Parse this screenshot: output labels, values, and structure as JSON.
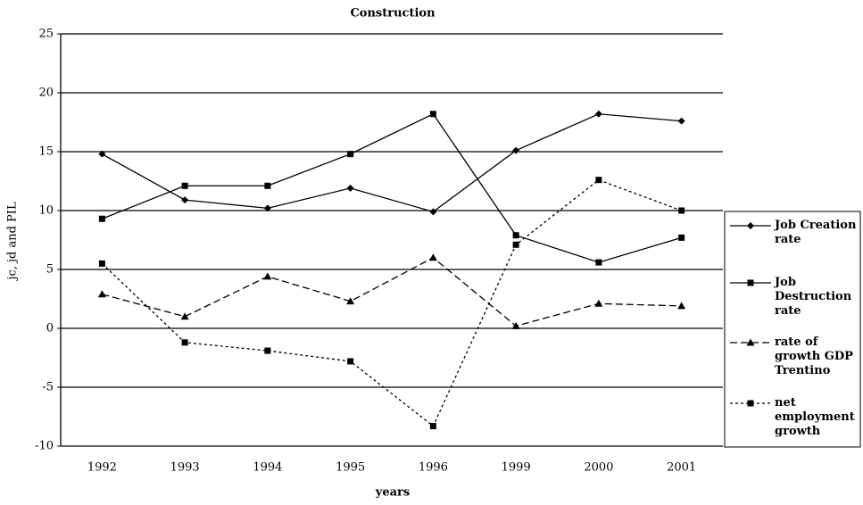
{
  "chart_data": {
    "type": "line",
    "title": "Construction",
    "x_label": "years",
    "y_label": "jc, jd and PIL",
    "categories": [
      "1992",
      "1993",
      "1994",
      "1995",
      "1996",
      "1999",
      "2000",
      "2001"
    ],
    "ylim": [
      -10,
      25
    ],
    "yticks": [
      -10,
      -5,
      0,
      5,
      10,
      15,
      20,
      25
    ],
    "grid": true,
    "series": [
      {
        "name": "Job Creation rate",
        "color": "#000000",
        "dash": "solid",
        "marker": "diamond",
        "values": [
          14.8,
          10.9,
          10.2,
          11.9,
          9.9,
          15.1,
          18.2,
          17.6
        ]
      },
      {
        "name": "Job Destruction rate",
        "color": "#000000",
        "dash": "solid",
        "marker": "square",
        "values": [
          9.3,
          12.1,
          12.1,
          14.8,
          18.2,
          7.9,
          5.6,
          7.7
        ]
      },
      {
        "name": "rate of growth GDP Trentino",
        "color": "#000000",
        "dash": "dashed",
        "marker": "triangle",
        "values": [
          2.9,
          1.0,
          4.4,
          2.3,
          6.0,
          0.2,
          2.1,
          1.9
        ]
      },
      {
        "name": "net employment growth",
        "color": "#000000",
        "dash": "dotted",
        "marker": "square",
        "values": [
          5.5,
          -1.2,
          -1.9,
          -2.8,
          -8.3,
          7.1,
          12.6,
          10.0
        ]
      }
    ]
  }
}
